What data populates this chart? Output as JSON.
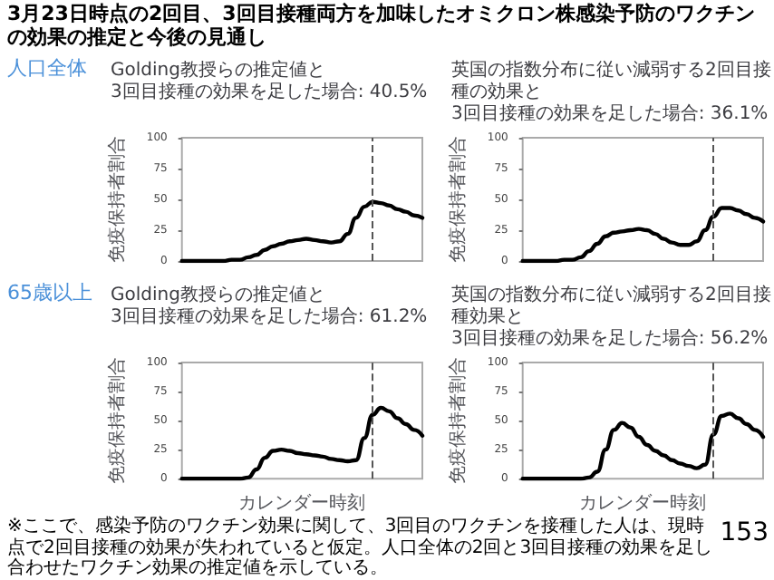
{
  "chart_data": [
    {
      "type": "line",
      "title": "Golding教授らの推定値と\n3回目接種の効果を足した場合: 40.5%",
      "ylabel": "免疫保持者割合",
      "categories": [
        null,
        null,
        null,
        null,
        null,
        null,
        null,
        null,
        null,
        null,
        null,
        null,
        null,
        null,
        null,
        null,
        null,
        null,
        null,
        null,
        null,
        null,
        null,
        null,
        null,
        null,
        null,
        null,
        null,
        null
      ],
      "series": [
        {
          "color": "#000000",
          "values": [
            0,
            0,
            0,
            0,
            0,
            0,
            1,
            1,
            3,
            5,
            9,
            12,
            14,
            16,
            17,
            18,
            17,
            16,
            15,
            16,
            22,
            35,
            44,
            48,
            47,
            45,
            42,
            40,
            37,
            35
          ]
        }
      ],
      "ylim": [
        0,
        100
      ],
      "yticks": [
        0,
        25,
        50,
        75,
        100
      ],
      "grid": false,
      "marker": "none",
      "line_style": "solid"
    },
    {
      "type": "line",
      "title": "英国の指数分布に従い減弱する2回目接種の効果と\n3回目接種の効果を足した場合: 36.1%",
      "ylabel": "免疫保持者割合",
      "categories": [
        null,
        null,
        null,
        null,
        null,
        null,
        null,
        null,
        null,
        null,
        null,
        null,
        null,
        null,
        null,
        null,
        null,
        null,
        null,
        null,
        null,
        null,
        null,
        null,
        null,
        null,
        null,
        null,
        null,
        null
      ],
      "series": [
        {
          "color": "#000000",
          "values": [
            0,
            0,
            0,
            0,
            0,
            1,
            1,
            3,
            8,
            14,
            20,
            23,
            24,
            25,
            26,
            25,
            22,
            18,
            15,
            13,
            13,
            16,
            25,
            36,
            43,
            43,
            41,
            38,
            35,
            32
          ]
        }
      ],
      "ylim": [
        0,
        100
      ],
      "yticks": [
        0,
        25,
        50,
        75,
        100
      ],
      "grid": false,
      "marker": "none",
      "line_style": "solid"
    },
    {
      "type": "line",
      "title": "Golding教授らの推定値と\n3回目接種の効果を足した場合: 61.2%",
      "xlabel": "カレンダー時刻",
      "ylabel": "免疫保持者割合",
      "categories": [
        null,
        null,
        null,
        null,
        null,
        null,
        null,
        null,
        null,
        null,
        null,
        null,
        null,
        null,
        null,
        null,
        null,
        null,
        null,
        null,
        null,
        null,
        null,
        null,
        null,
        null,
        null,
        null,
        null,
        null
      ],
      "series": [
        {
          "color": "#000000",
          "values": [
            0,
            0,
            0,
            0,
            0,
            0,
            0,
            0,
            1,
            8,
            18,
            24,
            25,
            24,
            22,
            21,
            20,
            19,
            17,
            16,
            15,
            16,
            35,
            55,
            61,
            58,
            52,
            47,
            42,
            37
          ]
        }
      ],
      "ylim": [
        0,
        100
      ],
      "yticks": [
        0,
        25,
        50,
        75,
        100
      ],
      "grid": false,
      "marker": "none",
      "line_style": "solid"
    },
    {
      "type": "line",
      "title": "英国の指数分布に従い減弱する2回目接種効果と\n3回目接種の効果を足した場合: 56.2%",
      "xlabel": "カレンダー時刻",
      "ylabel": "免疫保持者割合",
      "categories": [
        null,
        null,
        null,
        null,
        null,
        null,
        null,
        null,
        null,
        null,
        null,
        null,
        null,
        null,
        null,
        null,
        null,
        null,
        null,
        null,
        null,
        null,
        null,
        null,
        null,
        null,
        null,
        null,
        null,
        null
      ],
      "series": [
        {
          "color": "#000000",
          "values": [
            0,
            0,
            0,
            0,
            0,
            0,
            0,
            0,
            1,
            6,
            25,
            42,
            48,
            44,
            36,
            29,
            24,
            20,
            16,
            13,
            11,
            9,
            12,
            38,
            54,
            56,
            52,
            47,
            42,
            36
          ]
        }
      ],
      "ylim": [
        0,
        100
      ],
      "yticks": [
        0,
        25,
        50,
        75,
        100
      ],
      "grid": false,
      "marker": "none",
      "line_style": "solid"
    },
    {
      "type": "other",
      "title": "3月23日時点の2回目、3回目接種両方を加味したオミクロン株感染予防のワクチンの効果の推定と今後の見通し",
      "annotations": [
        "人口全体",
        "65歳以上",
        "※ここで、感染予防のワクチン効果に関して、3回目のワクチンを接種した人は、現時点で2回目接種の効果が失われていると仮定。人口全体の2回と3回目接種の効果を足し合わせたワクチン効果の推定値を示している。",
        "153"
      ]
    }
  ]
}
